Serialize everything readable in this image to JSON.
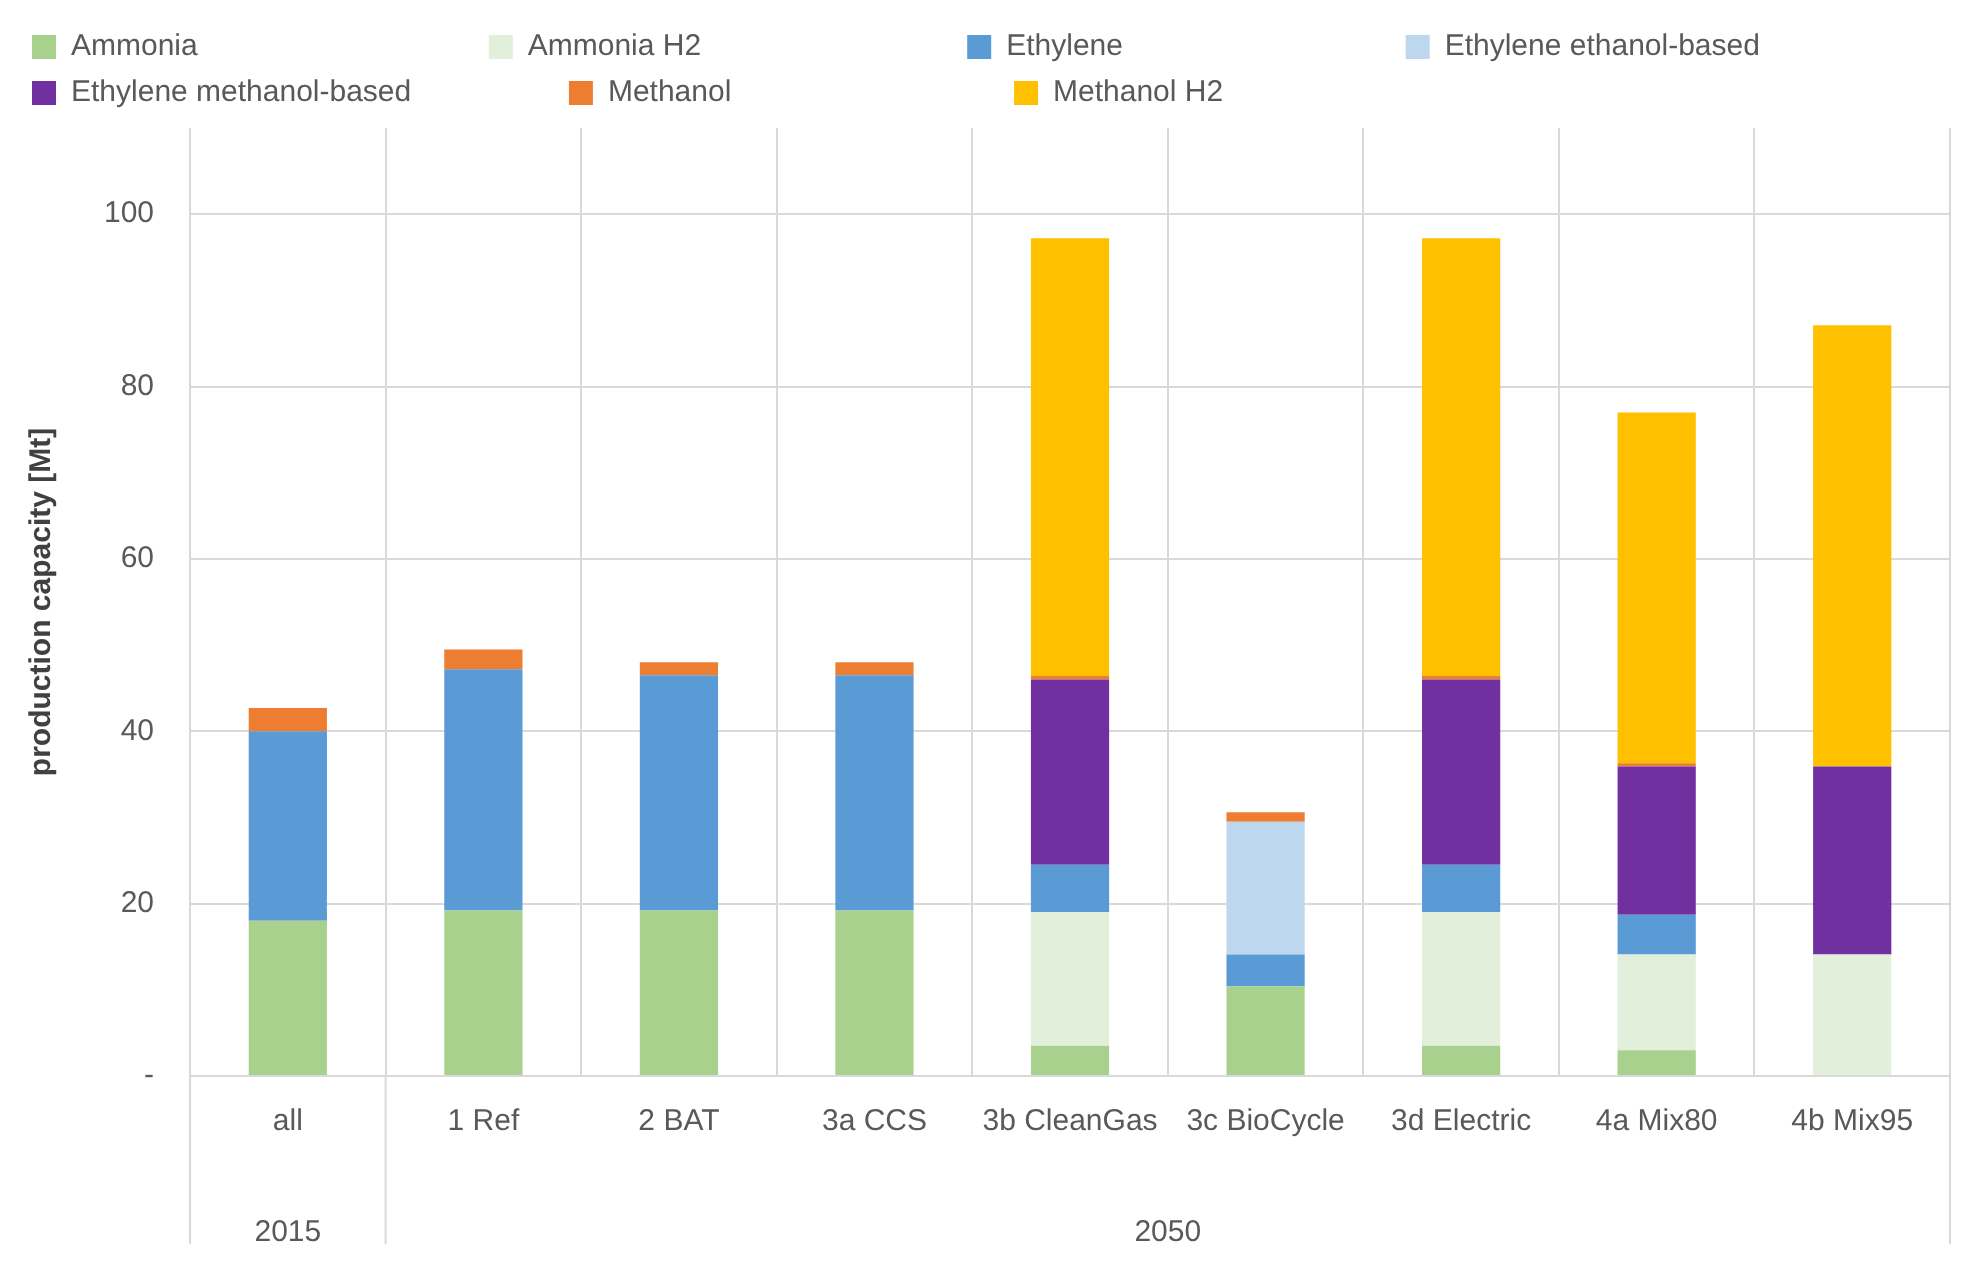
{
  "chart_data": {
    "type": "bar",
    "stacked": true,
    "ylabel": "production capacity [Mt]",
    "categories": [
      "all",
      "1 Ref",
      "2 BAT",
      "3a CCS",
      "3b CleanGas",
      "3c BioCycle",
      "3d Electric",
      "4a Mix80",
      "4b Mix95"
    ],
    "series": [
      {
        "name": "Ammonia",
        "color": "#a9d18e",
        "values": [
          18,
          19.2,
          19.2,
          19.2,
          3.5,
          10.4,
          3.5,
          3,
          null
        ]
      },
      {
        "name": "Ammonia H2",
        "color": "#e2efda",
        "values": [
          null,
          null,
          null,
          null,
          15.5,
          null,
          15.5,
          11.1,
          14.1
        ]
      },
      {
        "name": "Ethylene",
        "color": "#5b9bd5",
        "values": [
          22,
          28,
          27.3,
          27.3,
          5.5,
          3.7,
          5.5,
          4.6,
          null
        ]
      },
      {
        "name": "Ethylene ethanol-based",
        "color": "#bdd7ee",
        "values": [
          null,
          null,
          null,
          null,
          null,
          15.4,
          null,
          null,
          null
        ]
      },
      {
        "name": "Ethylene methanol-based",
        "color": "#7030a0",
        "values": [
          null,
          null,
          null,
          null,
          21.5,
          null,
          21.5,
          17.2,
          21.8
        ]
      },
      {
        "name": "Methanol",
        "color": "#ed7d31",
        "values": [
          2.7,
          2.3,
          1.5,
          1.5,
          0.4,
          1.1,
          0.4,
          0.4,
          null
        ]
      },
      {
        "name": "Methanol H2",
        "color": "#ffc000",
        "values": [
          null,
          null,
          null,
          null,
          50.8,
          null,
          50.8,
          40.7,
          51.2
        ]
      }
    ],
    "ylim": [
      0,
      110
    ],
    "yticks": [
      {
        "value": 0,
        "label": "-"
      },
      20,
      40,
      60,
      80,
      100
    ],
    "grid": true,
    "legend": "top",
    "annotations": [
      "2015",
      "2050"
    ]
  }
}
